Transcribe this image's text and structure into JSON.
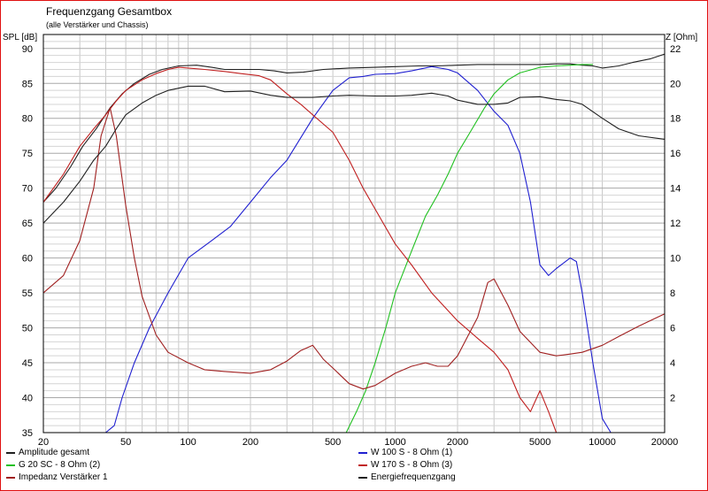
{
  "chart_data": {
    "type": "line",
    "title": "Frequenzgang Gesamtbox",
    "subtitle": "(alle Verstärker und Chassis)",
    "ylabel_left": "SPL [dB]",
    "ylabel_right": "Z [Ohm]",
    "xscale": "log",
    "xlim": [
      20,
      20000
    ],
    "ylim": [
      35,
      92
    ],
    "ylim_right": [
      0,
      22.8
    ],
    "xticks": [
      "20",
      "50",
      "100",
      "200",
      "500",
      "1000",
      "2000",
      "5000",
      "10000",
      "20000"
    ],
    "yticks_left": [
      "35",
      "40",
      "45",
      "50",
      "55",
      "60",
      "65",
      "70",
      "75",
      "80",
      "85",
      "90"
    ],
    "yticks_right": [
      "2",
      "4",
      "6",
      "8",
      "10",
      "12",
      "14",
      "16",
      "18",
      "20",
      "22"
    ],
    "grid": true,
    "legend_position": "bottom",
    "series": [
      {
        "name": "Amplitude gesamt",
        "axis": "left",
        "color": "#202020",
        "x": [
          20,
          23,
          27,
          31,
          36,
          42,
          48,
          55,
          65,
          75,
          90,
          110,
          130,
          150,
          180,
          220,
          260,
          300,
          360,
          450,
          600,
          800,
          1000,
          1300,
          1600,
          2000,
          2500,
          3000,
          3500,
          4000,
          5000,
          6000,
          7000,
          8000,
          9000,
          10000,
          12000,
          14000,
          17000,
          20000
        ],
        "y": [
          68,
          70,
          73,
          76,
          78.5,
          81.5,
          83.5,
          85,
          86.3,
          87,
          87.5,
          87.6,
          87.3,
          87,
          87,
          87,
          86.8,
          86.5,
          86.6,
          87,
          87.2,
          87.3,
          87.4,
          87.5,
          87.5,
          87.6,
          87.7,
          87.7,
          87.7,
          87.7,
          87.7,
          87.8,
          87.8,
          87.6,
          87.5,
          87.2,
          87.5,
          88,
          88.5,
          89.2
        ]
      },
      {
        "name": "W 100 S - 8 Ohm (1)",
        "axis": "left",
        "color": "#2020d0",
        "x": [
          20,
          40,
          44,
          48,
          55,
          65,
          80,
          100,
          130,
          160,
          200,
          250,
          300,
          400,
          500,
          600,
          700,
          800,
          1000,
          1200,
          1500,
          1800,
          2000,
          2500,
          3000,
          3500,
          4000,
          4500,
          5000,
          5500,
          6000,
          7000,
          7500,
          8000,
          9000,
          10000,
          11000,
          11500,
          12000,
          20000
        ],
        "y": [
          35,
          35,
          36,
          40,
          45,
          50,
          55,
          60,
          62.5,
          64.5,
          68,
          71.5,
          74,
          80,
          84,
          85.8,
          86,
          86.3,
          86.4,
          86.8,
          87.4,
          87,
          86.5,
          84,
          81,
          79,
          75,
          68,
          59,
          57.5,
          58.5,
          60,
          59.5,
          55,
          45,
          37,
          35,
          35,
          35,
          35
        ]
      },
      {
        "name": "G 20 SC - 8 Ohm (2)",
        "axis": "left",
        "color": "#20c020",
        "x": [
          20,
          500,
          580,
          650,
          720,
          800,
          900,
          1000,
          1200,
          1400,
          1600,
          1800,
          2000,
          2300,
          2700,
          3000,
          3500,
          4000,
          5000,
          6000,
          7000,
          8000,
          9000
        ],
        "y": [
          35,
          35,
          35,
          38,
          41,
          45,
          50,
          55,
          61,
          66,
          69,
          72,
          75,
          78,
          81.5,
          83.5,
          85.5,
          86.5,
          87.3,
          87.5,
          87.6,
          87.7,
          87.7
        ]
      },
      {
        "name": "W 170 S - 8 Ohm (3)",
        "axis": "left",
        "color": "#c02020",
        "x": [
          20,
          25,
          30,
          35,
          40,
          45,
          50,
          60,
          70,
          80,
          90,
          100,
          120,
          150,
          180,
          220,
          250,
          300,
          350,
          400,
          500,
          600,
          700,
          800,
          1000,
          1200,
          1500,
          2000,
          2500,
          3000,
          3500,
          4000,
          4500,
          5000,
          5500,
          6000,
          7000,
          20000
        ],
        "y": [
          68,
          72,
          76,
          78.5,
          80.5,
          82.5,
          84,
          85.5,
          86.4,
          87,
          87.3,
          87.2,
          87,
          86.7,
          86.4,
          86.1,
          85.5,
          83.5,
          82,
          80.5,
          78,
          74,
          70,
          67,
          62,
          59,
          55,
          51,
          48.5,
          46.5,
          44,
          40,
          38,
          41,
          38,
          35,
          35,
          35
        ]
      },
      {
        "name": "Impedanz Verstärker 1",
        "axis": "right",
        "color": "#a02020",
        "x": [
          20,
          25,
          30,
          35,
          38,
          42,
          45,
          50,
          55,
          60,
          70,
          80,
          100,
          120,
          150,
          200,
          250,
          300,
          350,
          400,
          450,
          500,
          600,
          700,
          800,
          1000,
          1200,
          1400,
          1600,
          1800,
          2000,
          2500,
          2800,
          3000,
          3500,
          4000,
          5000,
          6000,
          7000,
          8000,
          10000,
          12000,
          15000,
          20000
        ],
        "y": [
          8,
          9,
          11,
          14,
          17,
          18.6,
          17,
          13,
          10,
          7.8,
          5.6,
          4.6,
          4.0,
          3.6,
          3.5,
          3.4,
          3.6,
          4.1,
          4.7,
          5.0,
          4.2,
          3.7,
          2.8,
          2.5,
          2.7,
          3.4,
          3.8,
          4.0,
          3.8,
          3.8,
          4.4,
          6.6,
          8.6,
          8.8,
          7.3,
          5.8,
          4.6,
          4.4,
          4.5,
          4.6,
          5.0,
          5.5,
          6.1,
          6.8
        ]
      },
      {
        "name": "Energiefrequenzgang",
        "axis": "left",
        "color": "#202020",
        "x": [
          20,
          25,
          30,
          35,
          40,
          45,
          50,
          60,
          70,
          80,
          100,
          120,
          150,
          200,
          250,
          300,
          400,
          500,
          600,
          800,
          1000,
          1200,
          1500,
          1800,
          2000,
          2500,
          3000,
          3500,
          4000,
          5000,
          6000,
          7000,
          8000,
          10000,
          12000,
          15000,
          20000
        ],
        "y": [
          65,
          68,
          71,
          74,
          76,
          78.5,
          80.5,
          82.2,
          83.3,
          84,
          84.6,
          84.6,
          83.8,
          83.9,
          83.3,
          83,
          83,
          83.2,
          83.3,
          83.2,
          83.2,
          83.3,
          83.6,
          83.2,
          82.6,
          82,
          82,
          82.2,
          83,
          83.1,
          82.7,
          82.5,
          82,
          80,
          78.5,
          77.5,
          77
        ]
      }
    ]
  },
  "legend": [
    {
      "label": "Amplitude gesamt",
      "color": "#202020"
    },
    {
      "label": "W 100 S - 8 Ohm (1)",
      "color": "#2020d0"
    },
    {
      "label": "G 20 SC - 8 Ohm (2)",
      "color": "#20c020"
    },
    {
      "label": "W 170 S - 8 Ohm (3)",
      "color": "#c02020"
    },
    {
      "label": "Impedanz Verstärker 1",
      "color": "#a02020"
    },
    {
      "label": "Energiefrequenzgang",
      "color": "#202020"
    }
  ]
}
